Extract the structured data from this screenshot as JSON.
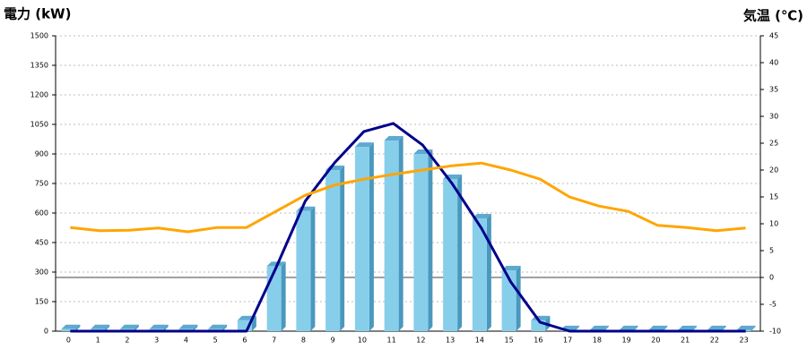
{
  "chart_data": {
    "type": "bar-line",
    "y_title": "電力 (kW)",
    "y2_title": "気温 (℃)",
    "categories": [
      "0",
      "1",
      "2",
      "3",
      "4",
      "5",
      "6",
      "7",
      "8",
      "9",
      "10",
      "11",
      "12",
      "13",
      "14",
      "15",
      "16",
      "17",
      "18",
      "19",
      "20",
      "21",
      "22",
      "23"
    ],
    "series": [
      {
        "type": "bar",
        "color": "#87ceeb",
        "values": [
          10,
          10,
          10,
          10,
          10,
          10,
          55,
          330,
          610,
          818,
          936,
          968,
          900,
          773,
          573,
          309,
          55,
          5,
          5,
          5,
          5,
          5,
          5,
          5
        ]
      },
      {
        "type": "line",
        "color": "#00008b",
        "values": [
          0,
          0,
          0,
          0,
          0,
          0,
          0,
          320,
          660,
          855,
          1014,
          1055,
          945,
          750,
          523,
          250,
          45,
          0,
          0,
          0,
          0,
          0,
          0,
          0
        ]
      },
      {
        "type": "line",
        "color": "#ffa500",
        "axis": "y2",
        "values": [
          9.3,
          8.7,
          8.8,
          9.2,
          8.5,
          9.3,
          9.3,
          12.3,
          15.3,
          17.2,
          18.3,
          19.2,
          20,
          20.8,
          21.3,
          20,
          18.3,
          15,
          13.3,
          12.3,
          9.7,
          9.3,
          8.7,
          9.2
        ]
      }
    ],
    "ylim": [
      0,
      1500
    ],
    "yticks": [
      0,
      150,
      300,
      450,
      600,
      750,
      900,
      1050,
      1200,
      1350,
      1500
    ],
    "y2lim": [
      -10,
      45
    ],
    "y2ticks": [
      -10,
      -5,
      0,
      5,
      10,
      15,
      20,
      25,
      30,
      35,
      40,
      45
    ],
    "y_title_color": "#1f6fb5",
    "y2_title_color": "#f08a1c",
    "grid": true
  }
}
